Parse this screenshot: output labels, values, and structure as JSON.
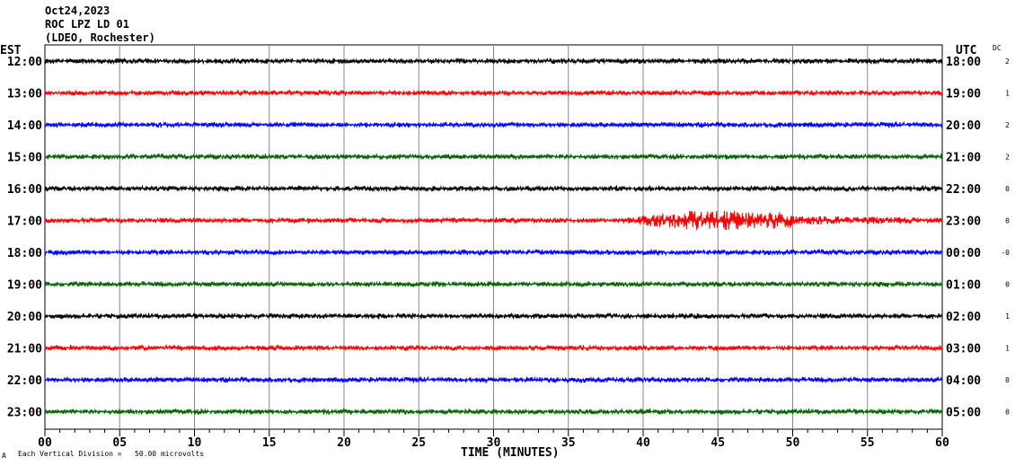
{
  "header": {
    "date": "Oct24,2023",
    "station": "ROC LPZ LD 01",
    "network": "(LDEO, Rochester)"
  },
  "chart_data": {
    "type": "line",
    "title": "Oct24,2023 ROC LPZ LD 01 (LDEO, Rochester)",
    "xlabel": "TIME (MINUTES)",
    "xlim": [
      0,
      60
    ],
    "x_ticks": [
      "00",
      "05",
      "10",
      "15",
      "20",
      "25",
      "30",
      "35",
      "40",
      "45",
      "50",
      "55",
      "60"
    ],
    "left_axis_label": "EST",
    "right_axis_label": "UTC",
    "dc_label": "DC",
    "scale_note": "Each Vertical Division =   50.00 microvolts",
    "corner_mark": "A",
    "grid": true,
    "rows": [
      {
        "est": "12:00",
        "utc": "18:00",
        "dc": "2",
        "color": "#000000"
      },
      {
        "est": "13:00",
        "utc": "19:00",
        "dc": "1",
        "color": "#ff0000"
      },
      {
        "est": "14:00",
        "utc": "20:00",
        "dc": "2",
        "color": "#0000ff"
      },
      {
        "est": "15:00",
        "utc": "21:00",
        "dc": "2",
        "color": "#006400"
      },
      {
        "est": "16:00",
        "utc": "22:00",
        "dc": "0",
        "color": "#000000"
      },
      {
        "est": "17:00",
        "utc": "23:00",
        "dc": "0",
        "color": "#ff0000",
        "event": {
          "start_min": 38,
          "peak_min": 43.5,
          "end_min": 50,
          "tail_end_min": 60
        }
      },
      {
        "est": "18:00",
        "utc": "00:00",
        "dc": "-0",
        "color": "#0000ff"
      },
      {
        "est": "19:00",
        "utc": "01:00",
        "dc": "0",
        "color": "#006400"
      },
      {
        "est": "20:00",
        "utc": "02:00",
        "dc": "1",
        "color": "#000000"
      },
      {
        "est": "21:00",
        "utc": "03:00",
        "dc": "1",
        "color": "#ff0000"
      },
      {
        "est": "22:00",
        "utc": "04:00",
        "dc": "0",
        "color": "#0000ff"
      },
      {
        "est": "23:00",
        "utc": "05:00",
        "dc": "0",
        "color": "#006400"
      }
    ]
  }
}
